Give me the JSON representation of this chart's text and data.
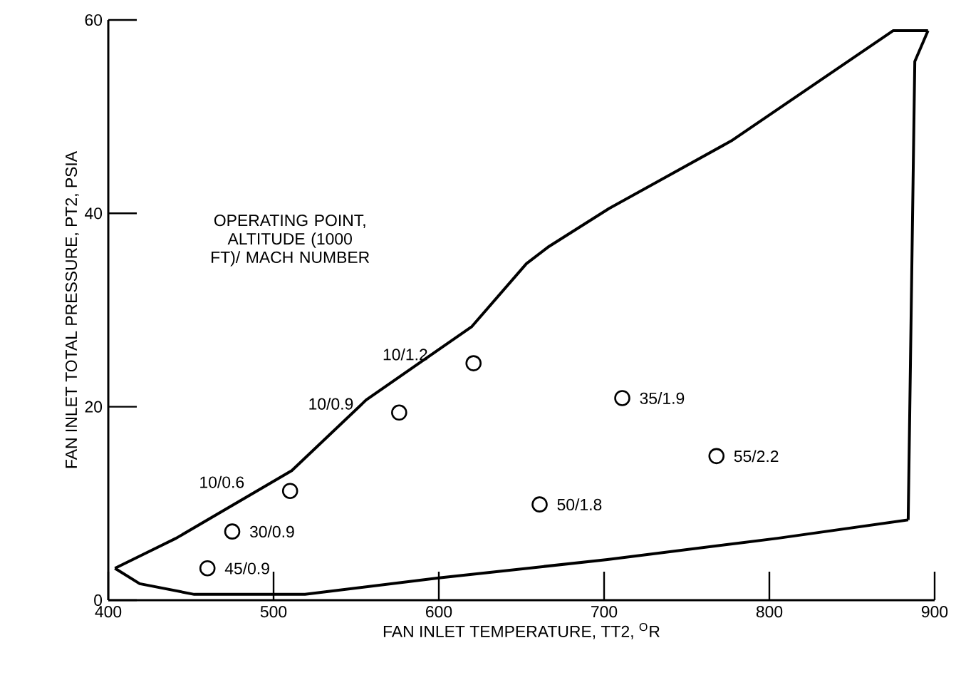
{
  "chart_data": {
    "type": "scatter",
    "xlabel": "FAN INLET TEMPERATURE, TT2, $^{O}$R",
    "ylabel": "FAN INLET TOTAL PRESSURE, PT2, PSIA",
    "xlim": [
      400,
      900
    ],
    "ylim": [
      0,
      60
    ],
    "xticks": [
      400,
      500,
      600,
      700,
      800,
      900
    ],
    "yticks": [
      0,
      20,
      40,
      60
    ],
    "grid": false,
    "marker": "circle",
    "series": [
      {
        "type": "line",
        "color": "#000000",
        "marker": "none",
        "line_style": "solid",
        "x": [
          404,
          441,
          511,
          556,
          620,
          653,
          666,
          703,
          777,
          875,
          896
        ],
        "values": [
          3.3,
          6.4,
          13.4,
          20.7,
          28.3,
          34.8,
          36.5,
          40.5,
          47.5,
          58.9,
          58.9
        ]
      },
      {
        "type": "line",
        "color": "#000000",
        "marker": "none",
        "line_style": "solid",
        "x": [
          884,
          888,
          896
        ],
        "values": [
          8.3,
          55.7,
          58.9
        ]
      },
      {
        "type": "line",
        "color": "#000000",
        "marker": "none",
        "line_style": "solid",
        "x": [
          404,
          419,
          452,
          519,
          600,
          702,
          805,
          884
        ],
        "values": [
          3.3,
          1.7,
          0.6,
          0.6,
          2.3,
          4.2,
          6.4,
          8.3
        ]
      },
      {
        "color": "#000000",
        "x": [
          460,
          475,
          510,
          576,
          621,
          711,
          768,
          661
        ],
        "values": [
          3.3,
          7.1,
          11.3,
          19.4,
          24.5,
          20.9,
          14.9,
          9.9
        ]
      }
    ],
    "annotations": [
      "OPERATING POINT, ALTITUDE (1000 FT)/ MACH NUMBER",
      {
        "text": "45/0.9",
        "x": 460,
        "y": 3.3
      },
      {
        "text": "30/0.9",
        "x": 475,
        "y": 7.1
      },
      {
        "text": "10/0.6",
        "x": 510,
        "y": 11.3
      },
      {
        "text": "10/0.9",
        "x": 576,
        "y": 19.4
      },
      {
        "text": "10/1.2",
        "x": 621,
        "y": 24.5
      },
      {
        "text": "35/1.9",
        "x": 711,
        "y": 20.9
      },
      {
        "text": "55/2.2",
        "x": 768,
        "y": 14.9
      },
      {
        "text": "50/1.8",
        "x": 661,
        "y": 9.9
      }
    ]
  }
}
